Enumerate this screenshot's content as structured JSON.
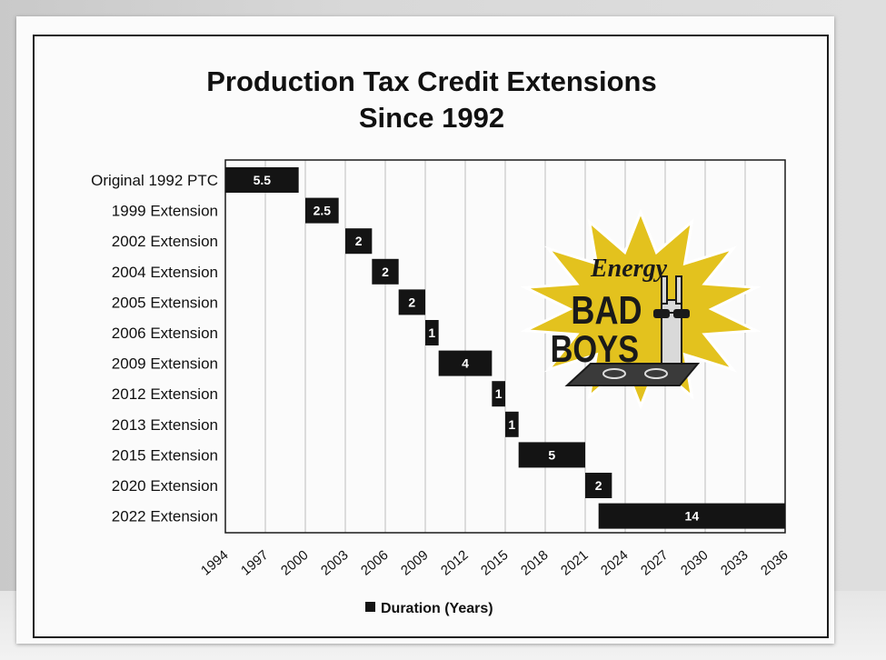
{
  "chart_data": {
    "type": "bar",
    "orientation": "horizontal",
    "title_lines": [
      "Production Tax Credit Extensions",
      "Since 1992"
    ],
    "legend": "Duration (Years)",
    "legend_placement": "bottom",
    "x_ticks": [
      "1994",
      "1997",
      "2000",
      "2003",
      "2006",
      "2009",
      "2012",
      "2015",
      "2018",
      "2021",
      "2024",
      "2027",
      "2030",
      "2033",
      "2036"
    ],
    "xlim": [
      1994,
      2036
    ],
    "grid": true,
    "categories": [
      "Original 1992 PTC",
      "1999 Extension",
      "2002 Extension",
      "2004 Extension",
      "2005 Extension",
      "2006 Extension",
      "2009 Extension",
      "2012 Extension",
      "2013 Extension",
      "2015 Extension",
      "2020 Extension",
      "2022 Extension"
    ],
    "start": [
      1994,
      2000,
      2003,
      2005,
      2007,
      2009,
      2010,
      2014,
      2015,
      2016,
      2021,
      2022
    ],
    "values": [
      5.5,
      2.5,
      2,
      2,
      2,
      1,
      4,
      1,
      1,
      5,
      2,
      14
    ],
    "labels": [
      "5.5",
      "2.5",
      "2",
      "2",
      "2",
      "1",
      "4",
      "1",
      "1",
      "5",
      "2",
      "14"
    ],
    "colors": {
      "bar": "#141414",
      "bar_text": "#ffffff",
      "grid": "#bdbdbd"
    }
  },
  "badge": {
    "line1": "Energy",
    "line2": "BAD",
    "line3": "BOYS",
    "colors": {
      "starburst": "#e3c21e",
      "ink": "#1a1a1a"
    }
  }
}
